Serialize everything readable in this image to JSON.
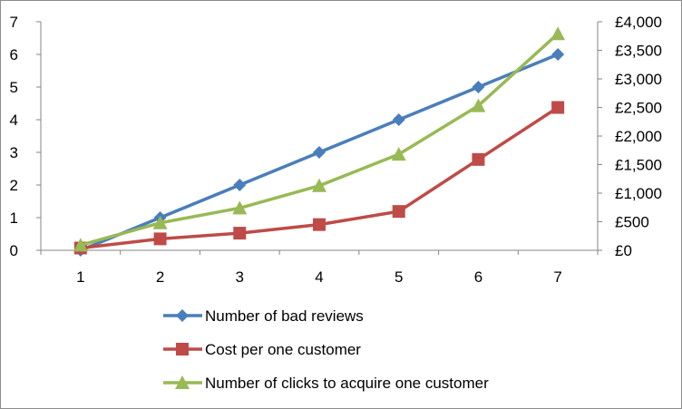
{
  "chart_data": {
    "type": "line",
    "x": [
      1,
      2,
      3,
      4,
      5,
      6,
      7
    ],
    "x_ticks": [
      "1",
      "2",
      "3",
      "4",
      "5",
      "6",
      "7"
    ],
    "y_left": {
      "range": [
        0,
        7
      ],
      "ticks": [
        "0",
        "1",
        "2",
        "3",
        "4",
        "5",
        "6",
        "7"
      ]
    },
    "y_right": {
      "range": [
        0,
        4000
      ],
      "ticks": [
        "£0",
        "£500",
        "£1,000",
        "£1,500",
        "£2,000",
        "£2,500",
        "£3,000",
        "£3,500",
        "£4,000"
      ]
    },
    "grid": false,
    "legend_placement": "bottom",
    "series": [
      {
        "name": "Number of bad reviews",
        "axis": "left",
        "values": [
          0,
          1,
          2,
          3,
          4,
          5,
          6
        ],
        "color": "#4a7ebb",
        "marker": "diamond"
      },
      {
        "name": "Cost per one customer",
        "axis": "right",
        "values": [
          40,
          200,
          300,
          450,
          680,
          1590,
          2500
        ],
        "color": "#be4b48",
        "marker": "square"
      },
      {
        "name": "Number of clicks to acquire one customer",
        "axis": "right",
        "values": [
          90,
          480,
          740,
          1130,
          1680,
          2530,
          3790
        ],
        "color": "#98b954",
        "marker": "triangle"
      }
    ]
  }
}
